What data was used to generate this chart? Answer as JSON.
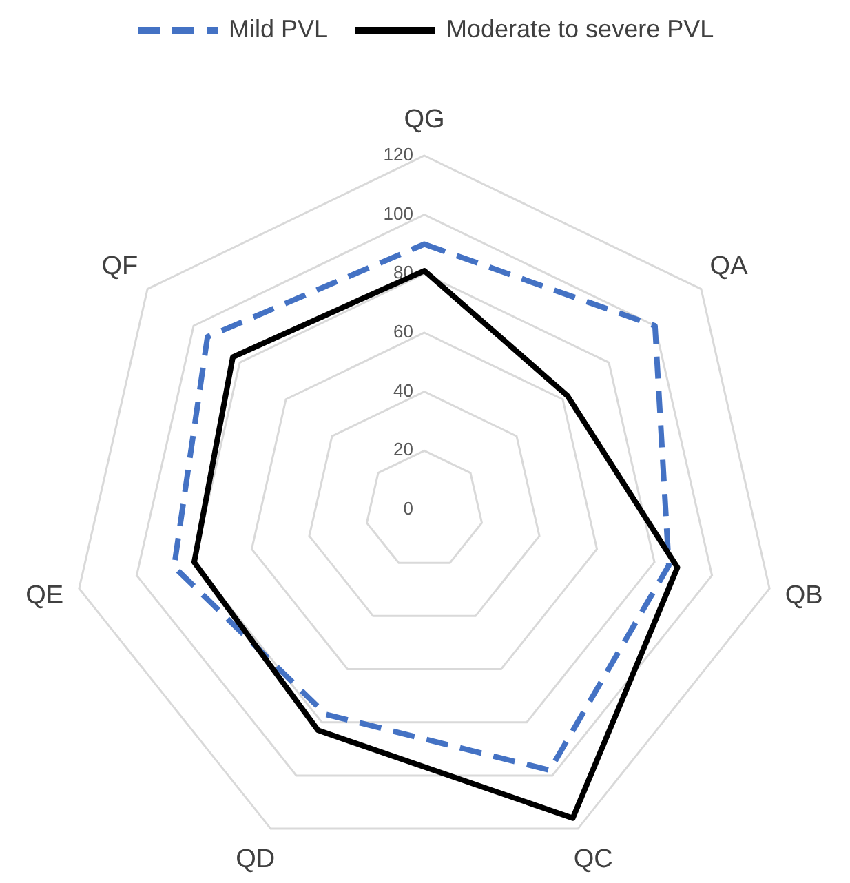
{
  "chart_data": {
    "type": "radar",
    "categories": [
      "QG",
      "QA",
      "QB",
      "QC",
      "QD",
      "QE",
      "QF"
    ],
    "series": [
      {
        "name": "Mild PVL",
        "color": "#4472c4",
        "line_style": "dashed",
        "values": [
          90,
          100,
          85,
          98,
          77,
          87,
          94
        ]
      },
      {
        "name": "Moderate to severe PVL",
        "color": "#000000",
        "line_style": "solid",
        "values": [
          81,
          62,
          88,
          116,
          83,
          80,
          83
        ]
      }
    ],
    "ylim": [
      0,
      120
    ],
    "yticks": [
      0,
      20,
      40,
      60,
      80,
      100,
      120
    ],
    "grid": true,
    "legend": "top",
    "marker": "none"
  }
}
